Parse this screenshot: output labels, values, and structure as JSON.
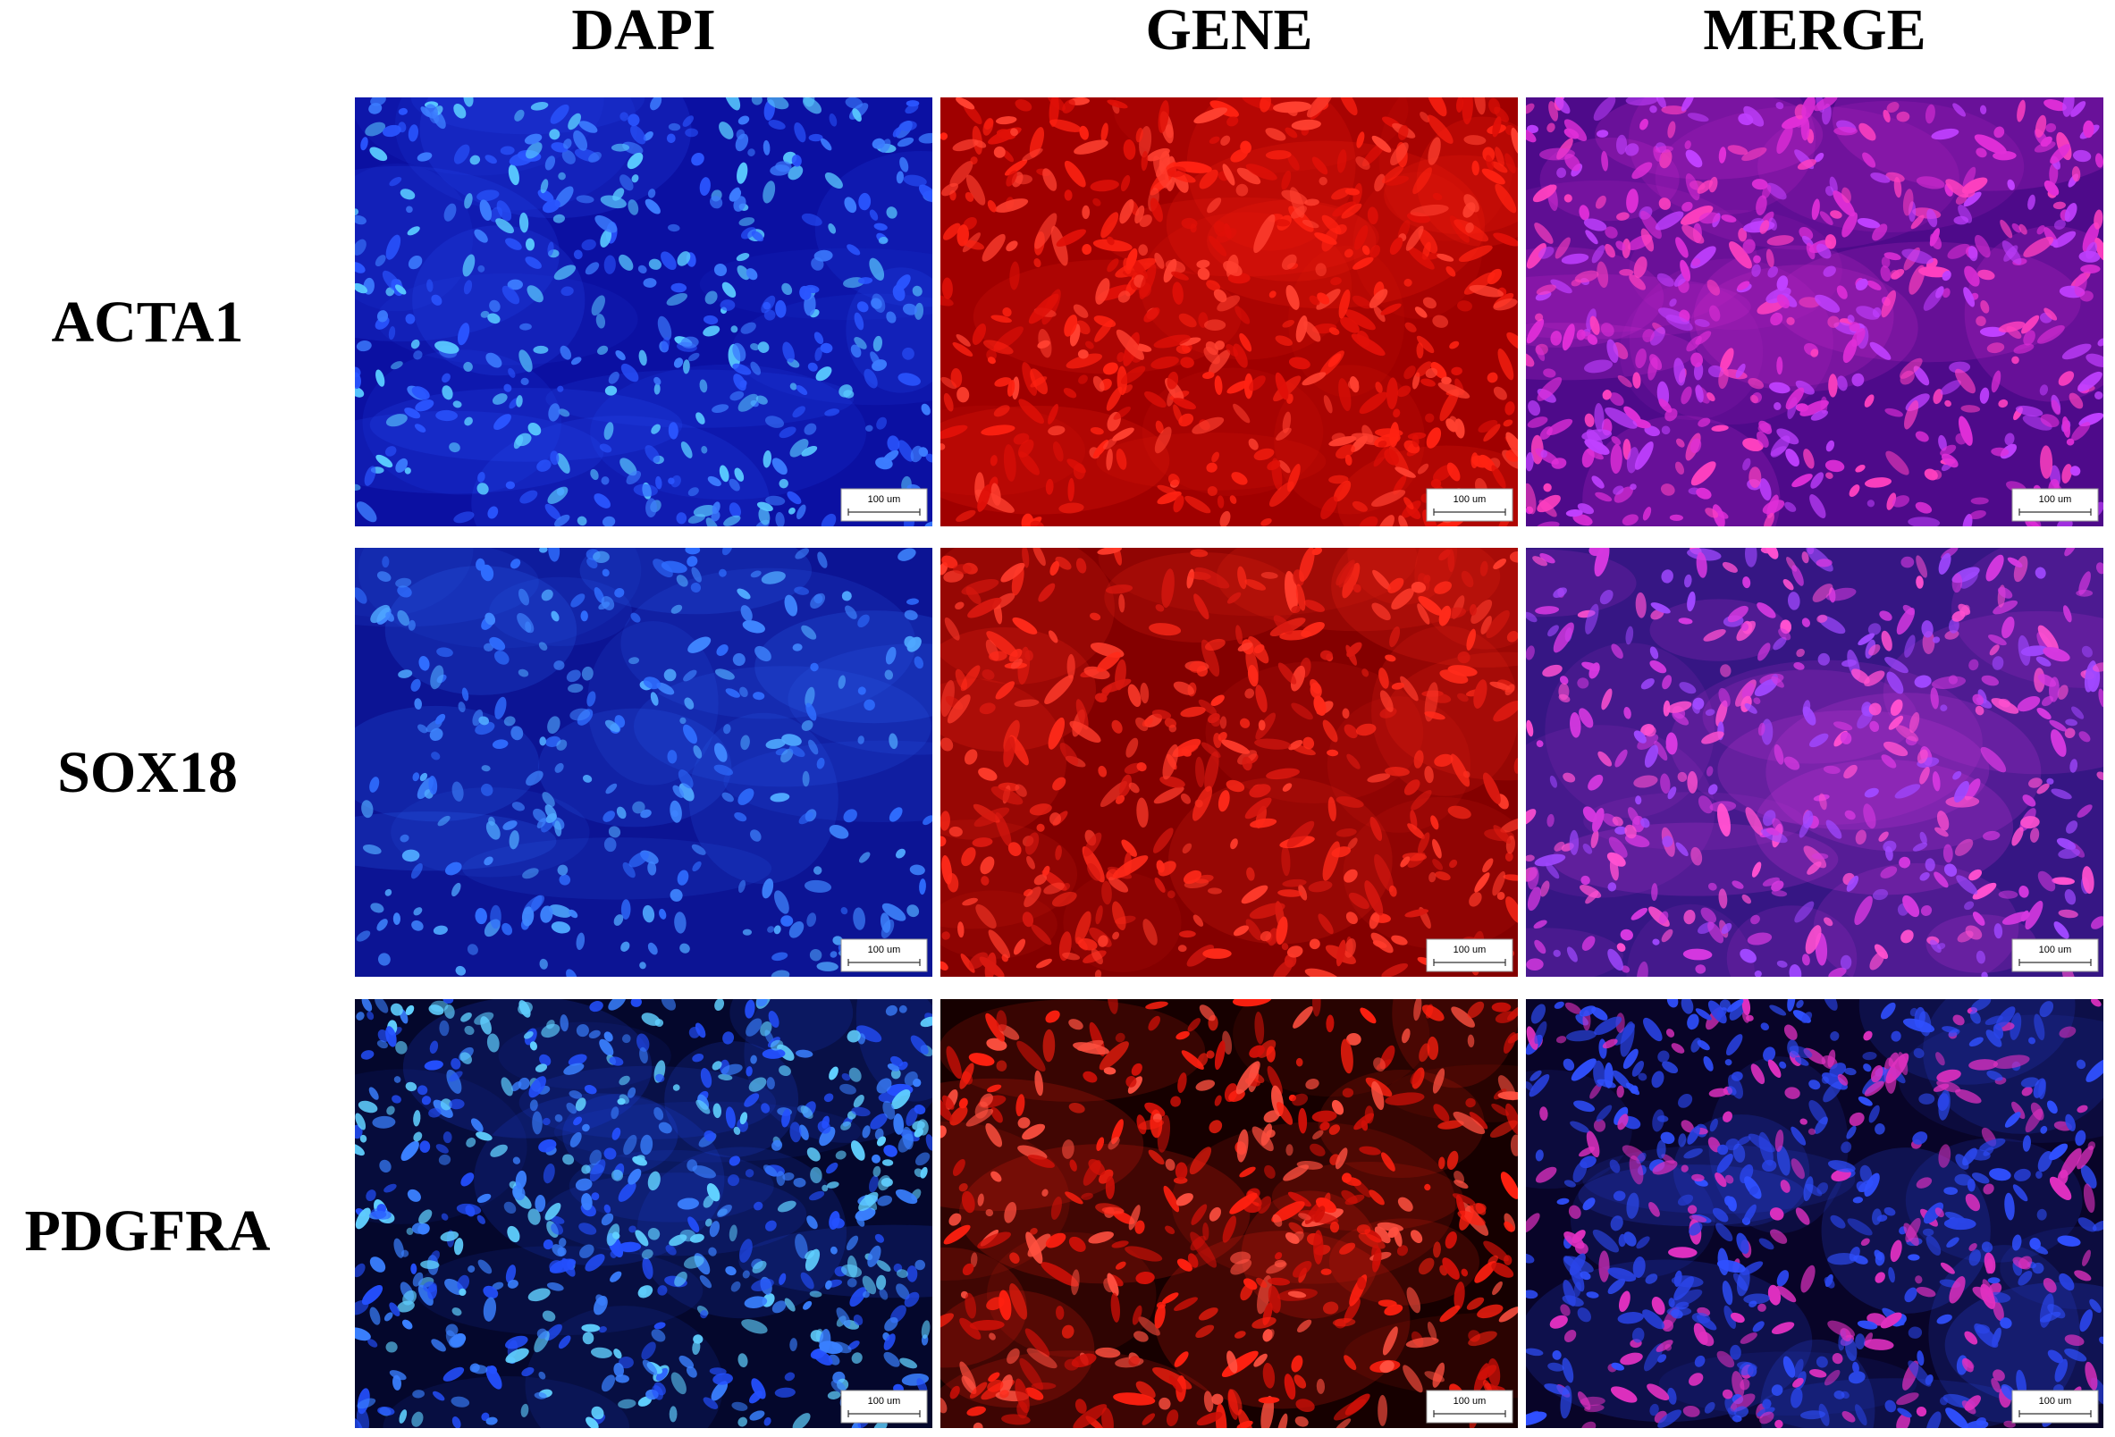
{
  "header": {
    "columns": [
      "DAPI",
      "GENE",
      "MERGE"
    ]
  },
  "rows": [
    {
      "label": "ACTA1",
      "scale_bars": [
        "100 um",
        "100 um",
        "100 um"
      ]
    },
    {
      "label": "SOX18",
      "scale_bars": [
        "100 um",
        "100 um",
        "100 um"
      ]
    },
    {
      "label": "PDGFRA",
      "scale_bars": [
        "100 um",
        "100 um",
        "100 um"
      ]
    }
  ]
}
